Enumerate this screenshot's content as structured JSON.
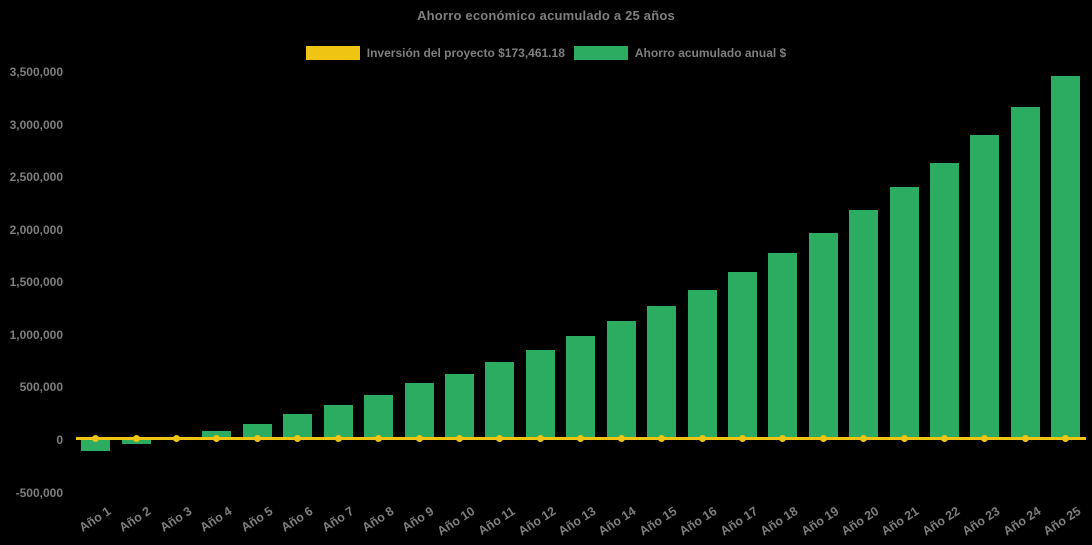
{
  "chart": {
    "title": "Ahorro económico acumulado a 25 años",
    "legend": [
      {
        "label": "Inversión del proyecto $173,461.18",
        "color": "#f0c413"
      },
      {
        "label": "Ahorro acumulado anual $",
        "color": "#2bac60"
      }
    ]
  },
  "chart_data": {
    "type": "bar",
    "title": "Ahorro económico acumulado a 25 años",
    "background_color": "#000000",
    "text_color": "#7f7f7f",
    "grid": false,
    "legend_position": "top",
    "xlabel": "",
    "ylabel": "",
    "ylim": [
      -500000,
      3500000
    ],
    "tick_rotation_deg": -33,
    "yticks": [
      {
        "value": 3500000,
        "label": "3,500,000"
      },
      {
        "value": 3000000,
        "label": "3,000,000"
      },
      {
        "value": 2500000,
        "label": "2,500,000"
      },
      {
        "value": 2000000,
        "label": "2,000,000"
      },
      {
        "value": 1500000,
        "label": "1,500,000"
      },
      {
        "value": 1000000,
        "label": "1,000,000"
      },
      {
        "value": 500000,
        "label": "500,000"
      },
      {
        "value": 0,
        "label": "0"
      },
      {
        "value": -500000,
        "label": "-500,000"
      }
    ],
    "categories": [
      "Año 1",
      "Año 2",
      "Año 3",
      "Año 4",
      "Año 5",
      "Año 6",
      "Año 7",
      "Año 8",
      "Año 9",
      "Año 10",
      "Año 11",
      "Año 12",
      "Año 13",
      "Año 14",
      "Año 15",
      "Año 16",
      "Año 17",
      "Año 18",
      "Año 19",
      "Año 20",
      "Año 21",
      "Año 22",
      "Año 23",
      "Año 24",
      "Año 25"
    ],
    "series": [
      {
        "name": "Inversión del proyecto $173,461.18",
        "type": "line",
        "color": "#f0c413",
        "constant_value": 173461.18
      },
      {
        "name": "Ahorro acumulado anual $",
        "type": "bar",
        "color": "#2bac60",
        "values": [
          -105000,
          -35000,
          8000,
          90000,
          155000,
          250000,
          330000,
          425000,
          540000,
          630000,
          740000,
          860000,
          990000,
          1130000,
          1280000,
          1430000,
          1600000,
          1780000,
          1975000,
          2185000,
          2410000,
          2640000,
          2900000,
          3170000,
          3465000
        ]
      }
    ]
  }
}
